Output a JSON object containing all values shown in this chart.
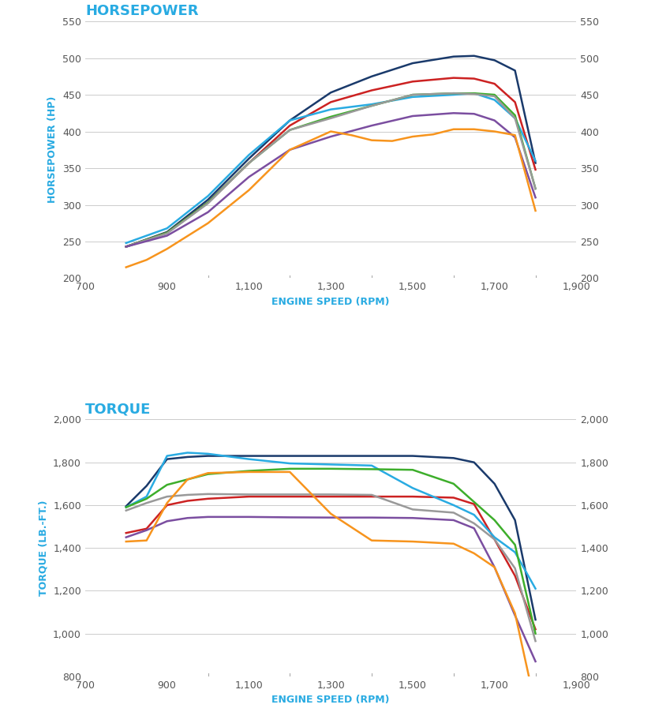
{
  "hp_title": "HORSEPOWER",
  "torque_title": "TORQUE",
  "hp_xlabel": "ENGINE SPEED (RPM)",
  "torque_xlabel": "ENGINE SPEED (RPM)",
  "hp_ylabel": "HORSEPOWER (HP)",
  "torque_ylabel": "TORQUE (LB.-FT.)",
  "hp_ylim": [
    200,
    550
  ],
  "hp_yticks": [
    200,
    250,
    300,
    350,
    400,
    450,
    500,
    550
  ],
  "torque_ylim": [
    800,
    2000
  ],
  "torque_yticks": [
    800,
    1000,
    1200,
    1400,
    1600,
    1800,
    2000
  ],
  "xlim": [
    700,
    1900
  ],
  "xticks": [
    700,
    900,
    1100,
    1300,
    1500,
    1700,
    1900
  ],
  "xtick_labels": [
    "700",
    "900",
    "1,100",
    "1,300",
    "1,500",
    "1,700",
    "1,900"
  ],
  "title_color": "#29ABE2",
  "label_color": "#29ABE2",
  "grid_color": "#CCCCCC",
  "bg_color": "#FFFFFF",
  "tick_color": "#555555",
  "series": [
    {
      "name": "dark_blue",
      "color": "#1A3A6B",
      "hp_x": [
        800,
        900,
        1000,
        1100,
        1200,
        1300,
        1400,
        1500,
        1600,
        1650,
        1700,
        1750,
        1800
      ],
      "hp_y": [
        243,
        263,
        307,
        363,
        415,
        453,
        475,
        493,
        502,
        503,
        497,
        483,
        357
      ],
      "torque_x": [
        800,
        850,
        900,
        950,
        1000,
        1100,
        1200,
        1300,
        1400,
        1500,
        1600,
        1650,
        1700,
        1750,
        1800
      ],
      "torque_y": [
        1595,
        1690,
        1815,
        1825,
        1830,
        1830,
        1830,
        1830,
        1830,
        1830,
        1820,
        1800,
        1700,
        1530,
        1065
      ]
    },
    {
      "name": "red",
      "color": "#CC2222",
      "hp_x": [
        800,
        900,
        1000,
        1100,
        1200,
        1300,
        1400,
        1500,
        1600,
        1650,
        1700,
        1750,
        1800
      ],
      "hp_y": [
        243,
        262,
        303,
        357,
        408,
        440,
        456,
        468,
        473,
        472,
        465,
        440,
        348
      ],
      "torque_x": [
        800,
        850,
        900,
        950,
        1000,
        1100,
        1200,
        1300,
        1400,
        1500,
        1600,
        1650,
        1700,
        1750,
        1800
      ],
      "torque_y": [
        1470,
        1490,
        1600,
        1620,
        1630,
        1640,
        1640,
        1640,
        1640,
        1640,
        1635,
        1605,
        1440,
        1270,
        1020
      ]
    },
    {
      "name": "cyan",
      "color": "#29ABE2",
      "hp_x": [
        800,
        900,
        1000,
        1100,
        1200,
        1300,
        1400,
        1500,
        1600,
        1650,
        1700,
        1750,
        1800
      ],
      "hp_y": [
        248,
        268,
        312,
        368,
        415,
        430,
        437,
        447,
        450,
        452,
        443,
        418,
        360
      ],
      "torque_x": [
        800,
        850,
        900,
        950,
        1000,
        1100,
        1200,
        1300,
        1400,
        1500,
        1600,
        1650,
        1700,
        1750,
        1800
      ],
      "torque_y": [
        1590,
        1640,
        1830,
        1845,
        1840,
        1815,
        1795,
        1790,
        1785,
        1680,
        1600,
        1555,
        1450,
        1380,
        1210
      ]
    },
    {
      "name": "green",
      "color": "#3DAE2B",
      "hp_x": [
        800,
        900,
        1000,
        1100,
        1200,
        1300,
        1400,
        1500,
        1600,
        1650,
        1700,
        1750,
        1800
      ],
      "hp_y": [
        243,
        262,
        303,
        357,
        402,
        420,
        435,
        450,
        452,
        452,
        450,
        422,
        322
      ],
      "torque_x": [
        800,
        850,
        900,
        950,
        1000,
        1100,
        1200,
        1300,
        1400,
        1500,
        1600,
        1650,
        1700,
        1750,
        1800
      ],
      "torque_y": [
        1590,
        1630,
        1695,
        1720,
        1745,
        1760,
        1770,
        1770,
        1768,
        1765,
        1700,
        1615,
        1530,
        1415,
        1000
      ]
    },
    {
      "name": "gray",
      "color": "#999999",
      "hp_x": [
        800,
        900,
        1000,
        1100,
        1200,
        1300,
        1400,
        1500,
        1600,
        1650,
        1700,
        1750,
        1800
      ],
      "hp_y": [
        243,
        261,
        302,
        357,
        402,
        418,
        435,
        450,
        452,
        451,
        448,
        418,
        322
      ],
      "torque_x": [
        800,
        850,
        900,
        950,
        1000,
        1100,
        1200,
        1300,
        1400,
        1500,
        1600,
        1650,
        1700,
        1750,
        1800
      ],
      "torque_y": [
        1575,
        1610,
        1640,
        1648,
        1652,
        1650,
        1650,
        1650,
        1648,
        1580,
        1565,
        1515,
        1440,
        1305,
        965
      ]
    },
    {
      "name": "purple",
      "color": "#7B4EA0",
      "hp_x": [
        800,
        900,
        1000,
        1100,
        1200,
        1300,
        1400,
        1500,
        1600,
        1650,
        1700,
        1750,
        1800
      ],
      "hp_y": [
        243,
        258,
        290,
        338,
        375,
        393,
        408,
        421,
        425,
        424,
        415,
        392,
        310
      ],
      "torque_x": [
        800,
        850,
        900,
        950,
        1000,
        1100,
        1200,
        1300,
        1400,
        1500,
        1600,
        1650,
        1700,
        1750,
        1800
      ],
      "torque_y": [
        1450,
        1483,
        1525,
        1540,
        1545,
        1545,
        1543,
        1542,
        1542,
        1540,
        1530,
        1492,
        1310,
        1085,
        870
      ]
    },
    {
      "name": "orange",
      "color": "#F7941D",
      "hp_x": [
        800,
        850,
        900,
        1000,
        1100,
        1200,
        1300,
        1350,
        1400,
        1450,
        1500,
        1550,
        1600,
        1650,
        1700,
        1750,
        1800
      ],
      "hp_y": [
        215,
        225,
        240,
        275,
        320,
        375,
        400,
        395,
        388,
        387,
        393,
        396,
        403,
        403,
        400,
        395,
        292
      ],
      "torque_x": [
        800,
        850,
        900,
        950,
        1000,
        1100,
        1200,
        1300,
        1400,
        1500,
        1600,
        1650,
        1700,
        1750,
        1800
      ],
      "torque_y": [
        1430,
        1435,
        1610,
        1720,
        1750,
        1755,
        1755,
        1560,
        1435,
        1430,
        1420,
        1375,
        1310,
        1095,
        660
      ]
    }
  ]
}
